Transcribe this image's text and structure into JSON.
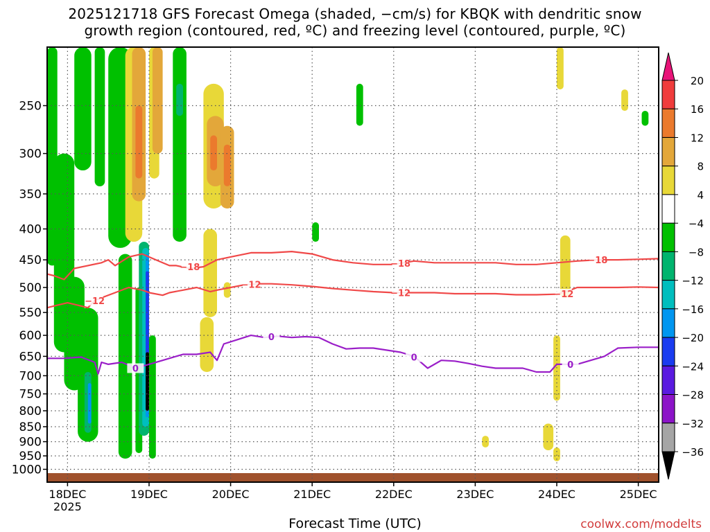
{
  "title": {
    "line1": "2025121718 GFS Forecast Omega (shaded, −cm/s) for KBQK with dendritic snow",
    "line2": "growth region (contoured, red, ºC) and freezing level (contoured, purple, ºC)"
  },
  "credit": "coolwx.com/modelts",
  "chart_data": {
    "type": "heatmap",
    "xlabel": "Forecast Time (UTC)",
    "ylabel": "",
    "x_ticks": [
      {
        "label": "18DEC",
        "sublabel": "2025",
        "hours": 6
      },
      {
        "label": "19DEC",
        "hours": 30
      },
      {
        "label": "20DEC",
        "hours": 54
      },
      {
        "label": "21DEC",
        "hours": 78
      },
      {
        "label": "22DEC",
        "hours": 102
      },
      {
        "label": "23DEC",
        "hours": 126
      },
      {
        "label": "24DEC",
        "hours": 150
      },
      {
        "label": "25DEC",
        "hours": 174
      }
    ],
    "xlim_hours": [
      0,
      180
    ],
    "y_axis": "pressure (hPa), log scale",
    "ylim": [
      1050,
      200
    ],
    "y_ticks": [
      250,
      300,
      350,
      400,
      450,
      500,
      550,
      600,
      650,
      700,
      750,
      800,
      850,
      900,
      950,
      1000
    ],
    "grid": true,
    "colorbar": {
      "labels": [
        "20",
        "16",
        "12",
        "8",
        "4",
        "−4",
        "−8",
        "−12",
        "−16",
        "−20",
        "−24",
        "−28",
        "−32",
        "−36"
      ],
      "colors": [
        "#e81478",
        "#f03c3c",
        "#eb7a2d",
        "#e3a73a",
        "#e8d838",
        "#ffffff",
        "#00c000",
        "#00b46e",
        "#00bebe",
        "#0096f0",
        "#1a3cf0",
        "#5a1ae0",
        "#8c14c8",
        "#a5a5a5",
        "#000000"
      ]
    },
    "omega_regions": [
      {
        "t0": 0,
        "t1": 3,
        "p0": 200,
        "p1": 460,
        "color": "#00c000"
      },
      {
        "t0": 2,
        "t1": 8,
        "p0": 300,
        "p1": 640,
        "color": "#00c000"
      },
      {
        "t0": 5,
        "t1": 11,
        "p0": 480,
        "p1": 740,
        "color": "#00c000"
      },
      {
        "t0": 9,
        "t1": 15,
        "p0": 540,
        "p1": 900,
        "color": "#00c000"
      },
      {
        "t0": 11,
        "t1": 13,
        "p0": 690,
        "p1": 870,
        "color": "#00b46e"
      },
      {
        "t0": 12,
        "t1": 13,
        "p0": 720,
        "p1": 840,
        "color": "#0096f0"
      },
      {
        "t0": 8,
        "t1": 13,
        "p0": 200,
        "p1": 320,
        "color": "#00c000"
      },
      {
        "t0": 14,
        "t1": 17,
        "p0": 200,
        "p1": 340,
        "color": "#00c000"
      },
      {
        "t0": 18,
        "t1": 25,
        "p0": 200,
        "p1": 430,
        "color": "#00c000"
      },
      {
        "t0": 21,
        "t1": 25,
        "p0": 440,
        "p1": 960,
        "color": "#00c000"
      },
      {
        "t0": 23,
        "t1": 28,
        "p0": 200,
        "p1": 420,
        "color": "#e8d838"
      },
      {
        "t0": 25,
        "t1": 29,
        "p0": 200,
        "p1": 360,
        "color": "#e3a73a"
      },
      {
        "t0": 26,
        "t1": 28,
        "p0": 250,
        "p1": 330,
        "color": "#eb7a2d"
      },
      {
        "t0": 26,
        "t1": 28,
        "p0": 500,
        "p1": 940,
        "color": "#00c000"
      },
      {
        "t0": 27,
        "t1": 30,
        "p0": 420,
        "p1": 880,
        "color": "#00b46e"
      },
      {
        "t0": 28,
        "t1": 30,
        "p0": 430,
        "p1": 850,
        "color": "#00bebe"
      },
      {
        "t0": 29,
        "t1": 30,
        "p0": 440,
        "p1": 820,
        "color": "#0096f0"
      },
      {
        "t0": 29,
        "t1": 30,
        "p0": 470,
        "p1": 780,
        "color": "#1a3cf0"
      },
      {
        "t0": 29,
        "t1": 30,
        "p0": 640,
        "p1": 800,
        "color": "#000000"
      },
      {
        "t0": 30,
        "t1": 33,
        "p0": 200,
        "p1": 330,
        "color": "#e8d838"
      },
      {
        "t0": 31,
        "t1": 34,
        "p0": 200,
        "p1": 300,
        "color": "#e3a73a"
      },
      {
        "t0": 30,
        "t1": 32,
        "p0": 600,
        "p1": 960,
        "color": "#00c000"
      },
      {
        "t0": 37,
        "t1": 41,
        "p0": 200,
        "p1": 420,
        "color": "#00c000"
      },
      {
        "t0": 38,
        "t1": 40,
        "p0": 230,
        "p1": 260,
        "color": "#00b46e"
      },
      {
        "t0": 46,
        "t1": 52,
        "p0": 230,
        "p1": 370,
        "color": "#e8d838"
      },
      {
        "t0": 47,
        "t1": 52,
        "p0": 260,
        "p1": 340,
        "color": "#e3a73a"
      },
      {
        "t0": 48,
        "t1": 50,
        "p0": 280,
        "p1": 320,
        "color": "#eb7a2d"
      },
      {
        "t0": 51,
        "t1": 55,
        "p0": 270,
        "p1": 370,
        "color": "#e3a73a"
      },
      {
        "t0": 52,
        "t1": 54,
        "p0": 290,
        "p1": 340,
        "color": "#eb7a2d"
      },
      {
        "t0": 46,
        "t1": 50,
        "p0": 400,
        "p1": 560,
        "color": "#e8d838"
      },
      {
        "t0": 45,
        "t1": 49,
        "p0": 560,
        "p1": 690,
        "color": "#e8d838"
      },
      {
        "t0": 52,
        "t1": 54,
        "p0": 490,
        "p1": 520,
        "color": "#e8d838"
      },
      {
        "t0": 78,
        "t1": 80,
        "p0": 390,
        "p1": 420,
        "color": "#00c000"
      },
      {
        "t0": 91,
        "t1": 93,
        "p0": 230,
        "p1": 270,
        "color": "#00c000"
      },
      {
        "t0": 150,
        "t1": 152,
        "p0": 200,
        "p1": 235,
        "color": "#e8d838"
      },
      {
        "t0": 151,
        "t1": 154,
        "p0": 410,
        "p1": 520,
        "color": "#e8d838"
      },
      {
        "t0": 149,
        "t1": 151,
        "p0": 600,
        "p1": 770,
        "color": "#e8d838"
      },
      {
        "t0": 146,
        "t1": 149,
        "p0": 840,
        "p1": 930,
        "color": "#e8d838"
      },
      {
        "t0": 149,
        "t1": 151,
        "p0": 920,
        "p1": 970,
        "color": "#e8d838"
      },
      {
        "t0": 128,
        "t1": 130,
        "p0": 880,
        "p1": 920,
        "color": "#e8d838"
      },
      {
        "t0": 169,
        "t1": 171,
        "p0": 235,
        "p1": 255,
        "color": "#e8d838"
      },
      {
        "t0": 175,
        "t1": 177,
        "p0": 255,
        "p1": 270,
        "color": "#00c000"
      }
    ],
    "contours": [
      {
        "name": "−18",
        "color": "#f04848",
        "t": [
          0,
          2,
          5,
          8,
          12,
          16,
          18,
          20,
          24,
          28,
          32,
          36,
          38,
          42,
          46,
          50,
          54,
          60,
          66,
          72,
          78,
          84,
          90,
          96,
          102,
          108,
          114,
          120,
          126,
          132,
          138,
          144,
          150,
          156,
          162,
          168,
          174,
          180
        ],
        "p": [
          475,
          478,
          485,
          465,
          460,
          455,
          450,
          460,
          445,
          440,
          450,
          460,
          460,
          465,
          462,
          450,
          445,
          438,
          438,
          436,
          440,
          450,
          455,
          458,
          458,
          452,
          455,
          455,
          455,
          455,
          458,
          458,
          455,
          452,
          450,
          450,
          449,
          448
        ]
      },
      {
        "name": "−12",
        "color": "#f04848",
        "t": [
          0,
          3,
          6,
          9,
          12,
          14,
          16,
          20,
          24,
          28,
          30,
          34,
          36,
          40,
          44,
          48,
          50,
          54,
          58,
          62,
          66,
          72,
          78,
          84,
          90,
          96,
          102,
          108,
          114,
          120,
          126,
          132,
          138,
          144,
          150,
          154,
          156,
          162,
          168,
          174,
          180
        ],
        "p": [
          540,
          535,
          530,
          535,
          540,
          525,
          520,
          510,
          500,
          505,
          510,
          515,
          510,
          505,
          500,
          508,
          505,
          500,
          495,
          493,
          493,
          495,
          498,
          502,
          505,
          508,
          510,
          510,
          510,
          512,
          512,
          512,
          514,
          514,
          513,
          505,
          500,
          500,
          500,
          499,
          500
        ]
      },
      {
        "name": "0",
        "color": "#9a1ec8",
        "t": [
          0,
          5,
          10,
          14,
          15,
          16,
          18,
          22,
          26,
          30,
          34,
          40,
          44,
          48,
          50,
          52,
          56,
          60,
          64,
          68,
          72,
          76,
          80,
          84,
          88,
          92,
          96,
          100,
          104,
          108,
          112,
          116,
          120,
          124,
          128,
          132,
          136,
          140,
          144,
          148,
          150,
          156,
          160,
          164,
          168,
          174,
          180
        ],
        "p": [
          655,
          655,
          652,
          665,
          695,
          665,
          670,
          665,
          680,
          670,
          660,
          645,
          645,
          640,
          660,
          620,
          610,
          600,
          605,
          602,
          605,
          603,
          605,
          620,
          632,
          630,
          630,
          635,
          640,
          650,
          680,
          660,
          662,
          668,
          675,
          680,
          680,
          680,
          690,
          690,
          670,
          670,
          660,
          650,
          630,
          628,
          628
        ]
      }
    ],
    "contour_labels": [
      {
        "text": "−18",
        "t": 42,
        "p": 462
      },
      {
        "text": "−18",
        "t": 104,
        "p": 456
      },
      {
        "text": "−18",
        "t": 162,
        "p": 450
      },
      {
        "text": "−12",
        "t": 14,
        "p": 526
      },
      {
        "text": "−12",
        "t": 60,
        "p": 494
      },
      {
        "text": "−12",
        "t": 104,
        "p": 510
      },
      {
        "text": "−12",
        "t": 152,
        "p": 512
      },
      {
        "text": "0",
        "t": 26,
        "p": 680
      },
      {
        "text": "0",
        "t": 66,
        "p": 603
      },
      {
        "text": "0",
        "t": 108,
        "p": 652
      },
      {
        "text": "0",
        "t": 154,
        "p": 670
      }
    ]
  }
}
